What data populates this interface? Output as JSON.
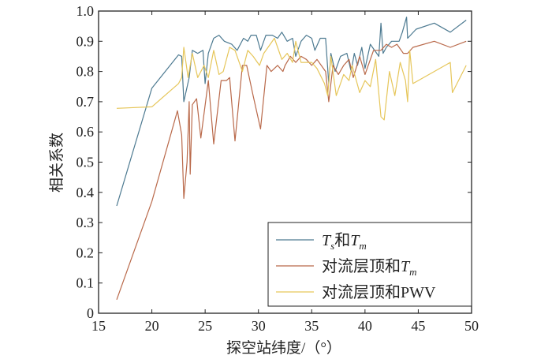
{
  "chart_data": {
    "type": "line",
    "title": "",
    "xlabel": "探空站纬度/（°）",
    "ylabel": "相关系数",
    "xlim": [
      15,
      50
    ],
    "ylim": [
      0,
      1.0
    ],
    "xticks": [
      15,
      20,
      25,
      30,
      35,
      40,
      45,
      50
    ],
    "yticks": [
      0,
      0.1,
      0.2,
      0.3,
      0.4,
      0.5,
      0.6,
      0.7,
      0.8,
      0.9,
      1.0
    ],
    "ytick_labels": [
      "0",
      "0.1",
      "0.2",
      "0.3",
      "0.4",
      "0.5",
      "0.6",
      "0.7",
      "0.8",
      "0.9",
      "1.0"
    ],
    "legend_position": "bottom-right",
    "series": [
      {
        "name": "Ts和Tm",
        "legend_parts": [
          "T",
          "s",
          "和",
          "T",
          "m"
        ],
        "color": "#4d7a91",
        "x": [
          16.7,
          20,
          22.5,
          22.8,
          23,
          23.5,
          23.8,
          24.3,
          24.8,
          25,
          25.3,
          25.8,
          26.3,
          26.8,
          27.5,
          28,
          28.6,
          29,
          29.3,
          29.8,
          30.2,
          30.7,
          31.3,
          31.8,
          32.2,
          32.7,
          33.2,
          33.5,
          34,
          34.5,
          35,
          35.3,
          35.8,
          36.3,
          36.6,
          36.8,
          37.2,
          37.7,
          38.3,
          38.7,
          39,
          39.3,
          39.7,
          40,
          40.5,
          41.3,
          41.5,
          41.7,
          42,
          42.5,
          43.2,
          43.5,
          43.9,
          44,
          44.8,
          46.5,
          48,
          49.5
        ],
        "y": [
          0.355,
          0.745,
          0.855,
          0.85,
          0.7,
          0.78,
          0.87,
          0.86,
          0.87,
          0.76,
          0.86,
          0.91,
          0.92,
          0.9,
          0.89,
          0.87,
          0.91,
          0.9,
          0.92,
          0.92,
          0.87,
          0.92,
          0.92,
          0.91,
          0.93,
          0.9,
          0.91,
          0.85,
          0.9,
          0.92,
          0.91,
          0.87,
          0.91,
          0.91,
          0.76,
          0.86,
          0.8,
          0.85,
          0.86,
          0.8,
          0.86,
          0.82,
          0.88,
          0.81,
          0.89,
          0.85,
          0.96,
          0.86,
          0.88,
          0.9,
          0.9,
          0.93,
          0.98,
          0.91,
          0.94,
          0.96,
          0.93,
          0.97
        ]
      },
      {
        "name": "对流层顶和Tm",
        "legend_parts": [
          "对流层顶和",
          "T",
          "m"
        ],
        "color": "#b9694a",
        "x": [
          16.7,
          20,
          22.4,
          22.8,
          23,
          23.3,
          23.5,
          23.6,
          23.8,
          24.2,
          24.6,
          25.3,
          25.8,
          26.5,
          27,
          27.3,
          27.8,
          28.5,
          28.9,
          29.5,
          30.2,
          30.8,
          31.2,
          31.8,
          32.3,
          32.5,
          33,
          33.5,
          34,
          34.5,
          35,
          35.5,
          36.3,
          36.6,
          37,
          37.5,
          38,
          38.5,
          38.9,
          39.5,
          40,
          40.8,
          41.5,
          42,
          42.5,
          43,
          43.6,
          44,
          44.5,
          46.5,
          48,
          49.5
        ],
        "y": [
          0.045,
          0.37,
          0.67,
          0.59,
          0.38,
          0.5,
          0.7,
          0.46,
          0.69,
          0.71,
          0.58,
          0.77,
          0.56,
          0.77,
          0.77,
          0.78,
          0.57,
          0.82,
          0.82,
          0.72,
          0.61,
          0.82,
          0.8,
          0.82,
          0.8,
          0.82,
          0.85,
          0.83,
          0.85,
          0.84,
          0.82,
          0.84,
          0.8,
          0.7,
          0.82,
          0.79,
          0.82,
          0.84,
          0.78,
          0.85,
          0.79,
          0.87,
          0.87,
          0.89,
          0.88,
          0.89,
          0.86,
          0.86,
          0.88,
          0.9,
          0.88,
          0.9
        ]
      },
      {
        "name": "对流层顶和PWV",
        "legend_parts": [
          "对流层顶和PWV"
        ],
        "color": "#e6c65a",
        "x": [
          16.7,
          20,
          22.5,
          22.8,
          23,
          23.4,
          23.8,
          24.3,
          24.9,
          25.3,
          25.8,
          26.3,
          26.7,
          27.3,
          27.8,
          28.5,
          29,
          29.5,
          30.1,
          30.5,
          31.5,
          32.2,
          32.7,
          33.2,
          33.5,
          34,
          35,
          35.5,
          36.2,
          36.5,
          36.8,
          37.3,
          38,
          38.5,
          38.8,
          39.5,
          40,
          40.5,
          41,
          41.5,
          41.8,
          42.3,
          42.8,
          43.3,
          43.8,
          44,
          44.2,
          44.5,
          46.5,
          48,
          48.2,
          49.5
        ],
        "y": [
          0.678,
          0.683,
          0.76,
          0.78,
          0.88,
          0.78,
          0.86,
          0.78,
          0.82,
          0.78,
          0.87,
          0.79,
          0.8,
          0.88,
          0.87,
          0.8,
          0.87,
          0.85,
          0.82,
          0.86,
          0.91,
          0.84,
          0.86,
          0.83,
          0.9,
          0.83,
          0.83,
          0.81,
          0.76,
          0.72,
          0.85,
          0.72,
          0.79,
          0.77,
          0.82,
          0.73,
          0.77,
          0.75,
          0.84,
          0.65,
          0.64,
          0.8,
          0.72,
          0.83,
          0.77,
          0.7,
          0.87,
          0.76,
          0.8,
          0.83,
          0.73,
          0.82
        ]
      }
    ]
  }
}
